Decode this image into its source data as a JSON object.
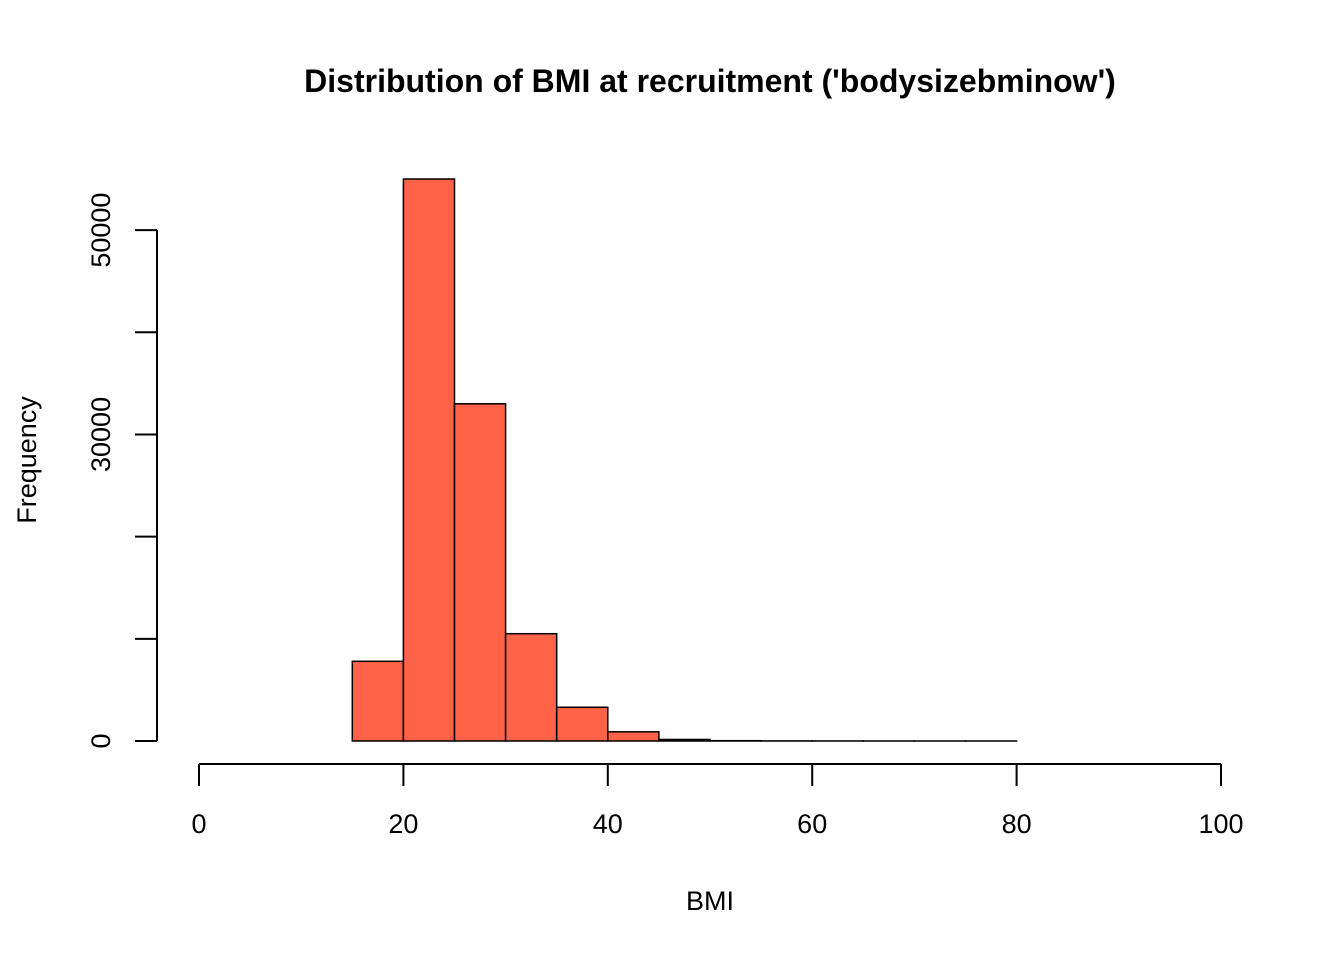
{
  "chart_data": {
    "type": "bar",
    "title": "Distribution of BMI at recruitment ('bodysizebminow')",
    "xlabel": "BMI",
    "ylabel": "Frequency",
    "xlim": [
      0,
      100
    ],
    "ylim": [
      0,
      55000
    ],
    "x_ticks": [
      0,
      20,
      40,
      60,
      80,
      100
    ],
    "y_ticks": [
      0,
      10000,
      20000,
      30000,
      40000,
      50000
    ],
    "y_tick_labels": [
      "0",
      "",
      "",
      "30000",
      "",
      "50000"
    ],
    "bin_edges": [
      10,
      15,
      20,
      25,
      30,
      35,
      40,
      45,
      50,
      55,
      60,
      65,
      70,
      75,
      80,
      85,
      90,
      95
    ],
    "values": [
      0,
      7800,
      55000,
      33000,
      10500,
      3300,
      900,
      150,
      30,
      10,
      5,
      2,
      1,
      1,
      0,
      0,
      0
    ],
    "bar_color": "#FF6347",
    "grid": false
  }
}
